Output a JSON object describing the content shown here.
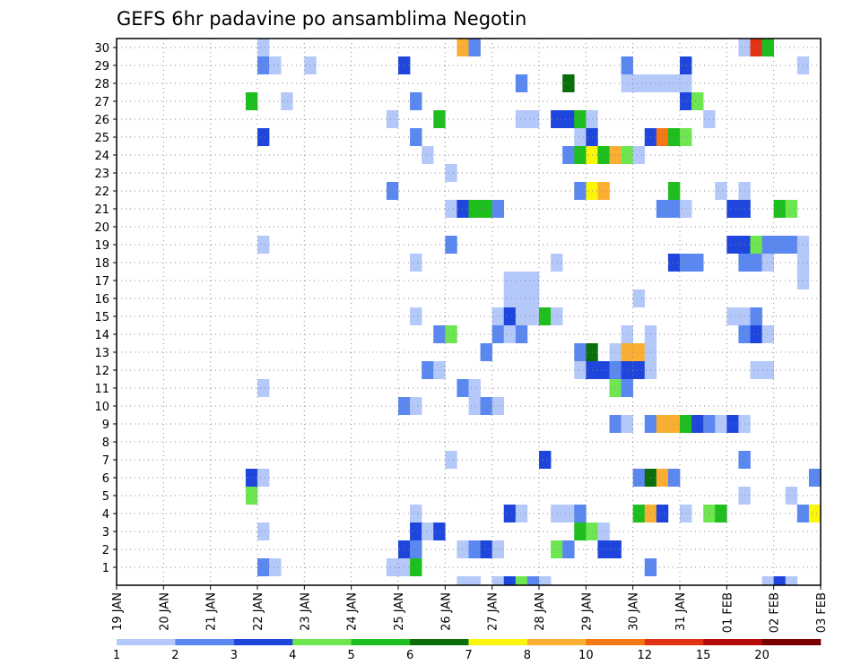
{
  "chart_data": {
    "type": "heatmap",
    "title": "GEFS 6hr padavine po ansamblima Negotin",
    "x_ticks": [
      "19 JAN",
      "20 JAN",
      "21 JAN",
      "22 JAN",
      "23 JAN",
      "24 JAN",
      "25 JAN",
      "26 JAN",
      "27 JAN",
      "28 JAN",
      "29 JAN",
      "30 JAN",
      "31 JAN",
      "01 FEB",
      "02 FEB",
      "03 FEB"
    ],
    "y_ticks": [
      1,
      2,
      3,
      4,
      5,
      6,
      7,
      8,
      9,
      10,
      11,
      12,
      13,
      14,
      15,
      16,
      17,
      18,
      19,
      20,
      21,
      22,
      23,
      24,
      25,
      26,
      27,
      28,
      29,
      30
    ],
    "ylim": [
      0,
      30
    ],
    "time_steps_per_day": 4,
    "grid": true,
    "legend": {
      "placement": "bottom",
      "thresholds": [
        "1",
        "2",
        "3",
        "4",
        "5",
        "6",
        "7",
        "8",
        "10",
        "12",
        "15",
        "20"
      ],
      "colors": [
        "#b4c8fa",
        "#5a87f0",
        "#1e46dc",
        "#6ee650",
        "#1ebe1e",
        "#0a6e0a",
        "#faf50a",
        "#faaf32",
        "#f57814",
        "#e13214",
        "#b40a0a",
        "#780000"
      ]
    },
    "cells": [
      [
        12,
        30,
        1
      ],
      [
        29,
        30,
        8
      ],
      [
        30,
        30,
        2
      ],
      [
        53,
        30,
        1
      ],
      [
        54,
        30,
        10
      ],
      [
        55,
        30,
        5
      ],
      [
        12,
        29,
        2
      ],
      [
        13,
        29,
        1
      ],
      [
        16,
        29,
        1
      ],
      [
        24,
        29,
        3
      ],
      [
        43,
        29,
        2
      ],
      [
        48,
        29,
        3
      ],
      [
        58,
        29,
        1
      ],
      [
        34,
        28,
        2
      ],
      [
        38,
        28,
        6
      ],
      [
        43,
        28,
        1
      ],
      [
        44,
        28,
        1
      ],
      [
        45,
        28,
        1
      ],
      [
        46,
        28,
        1
      ],
      [
        47,
        28,
        1
      ],
      [
        48,
        28,
        1
      ],
      [
        11,
        27,
        5
      ],
      [
        14,
        27,
        1
      ],
      [
        25,
        27,
        2
      ],
      [
        48,
        27,
        3
      ],
      [
        49,
        27,
        4
      ],
      [
        23,
        26,
        1
      ],
      [
        27,
        26,
        5
      ],
      [
        34,
        26,
        1
      ],
      [
        35,
        26,
        1
      ],
      [
        37,
        26,
        3
      ],
      [
        38,
        26,
        3
      ],
      [
        39,
        26,
        5
      ],
      [
        40,
        26,
        1
      ],
      [
        50,
        26,
        1
      ],
      [
        12,
        25,
        3
      ],
      [
        25,
        25,
        2
      ],
      [
        39,
        25,
        1
      ],
      [
        40,
        25,
        3
      ],
      [
        45,
        25,
        3
      ],
      [
        46,
        25,
        9
      ],
      [
        47,
        25,
        5
      ],
      [
        48,
        25,
        4
      ],
      [
        26,
        24,
        1
      ],
      [
        38,
        24,
        2
      ],
      [
        39,
        24,
        5
      ],
      [
        40,
        24,
        7
      ],
      [
        41,
        24,
        5
      ],
      [
        42,
        24,
        8
      ],
      [
        43,
        24,
        4
      ],
      [
        44,
        24,
        1
      ],
      [
        28,
        23,
        1
      ],
      [
        23,
        22,
        2
      ],
      [
        39,
        22,
        2
      ],
      [
        40,
        22,
        7
      ],
      [
        41,
        22,
        8
      ],
      [
        47,
        22,
        5
      ],
      [
        51,
        22,
        1
      ],
      [
        53,
        22,
        1
      ],
      [
        28,
        21,
        1
      ],
      [
        29,
        21,
        3
      ],
      [
        30,
        21,
        5
      ],
      [
        31,
        21,
        5
      ],
      [
        32,
        21,
        2
      ],
      [
        46,
        21,
        2
      ],
      [
        47,
        21,
        2
      ],
      [
        48,
        21,
        1
      ],
      [
        52,
        21,
        3
      ],
      [
        53,
        21,
        3
      ],
      [
        56,
        21,
        5
      ],
      [
        57,
        21,
        4
      ],
      [
        12,
        19,
        1
      ],
      [
        28,
        19,
        2
      ],
      [
        52,
        19,
        3
      ],
      [
        53,
        19,
        3
      ],
      [
        54,
        19,
        4
      ],
      [
        55,
        19,
        2
      ],
      [
        56,
        19,
        2
      ],
      [
        57,
        19,
        2
      ],
      [
        58,
        19,
        1
      ],
      [
        25,
        18,
        1
      ],
      [
        37,
        18,
        1
      ],
      [
        47,
        18,
        3
      ],
      [
        48,
        18,
        2
      ],
      [
        49,
        18,
        2
      ],
      [
        53,
        18,
        2
      ],
      [
        54,
        18,
        2
      ],
      [
        55,
        18,
        1
      ],
      [
        58,
        18,
        1
      ],
      [
        33,
        17,
        1
      ],
      [
        34,
        17,
        1
      ],
      [
        35,
        17,
        1
      ],
      [
        58,
        17,
        1
      ],
      [
        33,
        16,
        1
      ],
      [
        34,
        16,
        1
      ],
      [
        35,
        16,
        1
      ],
      [
        44,
        16,
        1
      ],
      [
        25,
        15,
        1
      ],
      [
        32,
        15,
        1
      ],
      [
        33,
        15,
        3
      ],
      [
        34,
        15,
        1
      ],
      [
        35,
        15,
        1
      ],
      [
        36,
        15,
        5
      ],
      [
        37,
        15,
        1
      ],
      [
        52,
        15,
        1
      ],
      [
        53,
        15,
        1
      ],
      [
        54,
        15,
        2
      ],
      [
        27,
        14,
        2
      ],
      [
        28,
        14,
        4
      ],
      [
        32,
        14,
        2
      ],
      [
        33,
        14,
        1
      ],
      [
        34,
        14,
        2
      ],
      [
        43,
        14,
        1
      ],
      [
        45,
        14,
        1
      ],
      [
        53,
        14,
        2
      ],
      [
        54,
        14,
        3
      ],
      [
        55,
        14,
        1
      ],
      [
        31,
        13,
        2
      ],
      [
        39,
        13,
        2
      ],
      [
        40,
        13,
        6
      ],
      [
        42,
        13,
        1
      ],
      [
        43,
        13,
        8
      ],
      [
        44,
        13,
        8
      ],
      [
        45,
        13,
        1
      ],
      [
        26,
        12,
        2
      ],
      [
        27,
        12,
        1
      ],
      [
        39,
        12,
        1
      ],
      [
        40,
        12,
        3
      ],
      [
        41,
        12,
        3
      ],
      [
        42,
        12,
        2
      ],
      [
        43,
        12,
        3
      ],
      [
        44,
        12,
        3
      ],
      [
        45,
        12,
        1
      ],
      [
        54,
        12,
        1
      ],
      [
        55,
        12,
        1
      ],
      [
        12,
        11,
        1
      ],
      [
        29,
        11,
        2
      ],
      [
        30,
        11,
        1
      ],
      [
        42,
        11,
        4
      ],
      [
        43,
        11,
        2
      ],
      [
        24,
        10,
        2
      ],
      [
        25,
        10,
        1
      ],
      [
        30,
        10,
        1
      ],
      [
        31,
        10,
        2
      ],
      [
        32,
        10,
        1
      ],
      [
        42,
        9,
        2
      ],
      [
        43,
        9,
        1
      ],
      [
        45,
        9,
        2
      ],
      [
        46,
        9,
        8
      ],
      [
        47,
        9,
        8
      ],
      [
        48,
        9,
        5
      ],
      [
        49,
        9,
        3
      ],
      [
        50,
        9,
        2
      ],
      [
        51,
        9,
        1
      ],
      [
        52,
        9,
        3
      ],
      [
        53,
        9,
        1
      ],
      [
        28,
        7,
        1
      ],
      [
        36,
        7,
        3
      ],
      [
        53,
        7,
        2
      ],
      [
        11,
        6,
        3
      ],
      [
        12,
        6,
        1
      ],
      [
        44,
        6,
        2
      ],
      [
        45,
        6,
        6
      ],
      [
        46,
        6,
        8
      ],
      [
        47,
        6,
        2
      ],
      [
        59,
        6,
        2
      ],
      [
        11,
        5,
        4
      ],
      [
        53,
        5,
        1
      ],
      [
        57,
        5,
        1
      ],
      [
        25,
        4,
        1
      ],
      [
        33,
        4,
        3
      ],
      [
        34,
        4,
        1
      ],
      [
        37,
        4,
        1
      ],
      [
        38,
        4,
        1
      ],
      [
        39,
        4,
        2
      ],
      [
        44,
        4,
        5
      ],
      [
        45,
        4,
        8
      ],
      [
        46,
        4,
        3
      ],
      [
        48,
        4,
        1
      ],
      [
        50,
        4,
        4
      ],
      [
        51,
        4,
        5
      ],
      [
        58,
        4,
        2
      ],
      [
        59,
        4,
        7
      ],
      [
        12,
        3,
        1
      ],
      [
        25,
        3,
        3
      ],
      [
        26,
        3,
        1
      ],
      [
        27,
        3,
        3
      ],
      [
        39,
        3,
        5
      ],
      [
        40,
        3,
        4
      ],
      [
        41,
        3,
        1
      ],
      [
        24,
        2,
        3
      ],
      [
        25,
        2,
        2
      ],
      [
        29,
        2,
        1
      ],
      [
        30,
        2,
        2
      ],
      [
        31,
        2,
        3
      ],
      [
        32,
        2,
        1
      ],
      [
        37,
        2,
        4
      ],
      [
        38,
        2,
        2
      ],
      [
        41,
        2,
        3
      ],
      [
        42,
        2,
        3
      ],
      [
        12,
        1,
        2
      ],
      [
        13,
        1,
        1
      ],
      [
        23,
        1,
        1
      ],
      [
        24,
        1,
        1
      ],
      [
        25,
        1,
        5
      ],
      [
        45,
        1,
        2
      ],
      [
        29,
        0,
        1
      ],
      [
        30,
        0,
        1
      ],
      [
        32,
        0,
        1
      ],
      [
        33,
        0,
        3
      ],
      [
        34,
        0,
        4
      ],
      [
        35,
        0,
        2
      ],
      [
        36,
        0,
        1
      ],
      [
        55,
        0,
        1
      ],
      [
        56,
        0,
        3
      ],
      [
        57,
        0,
        1
      ]
    ]
  }
}
